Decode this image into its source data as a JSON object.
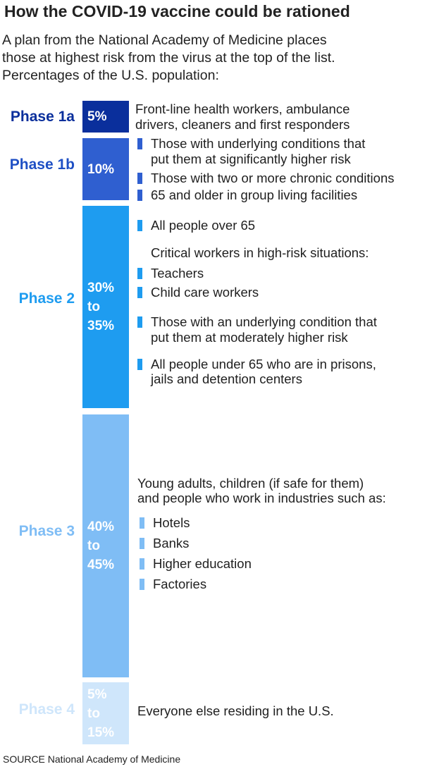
{
  "title": "How the COVID-19 vaccine could be rationed",
  "subtitle": [
    "A plan from the National Academy of Medicine places",
    "those at highest risk from the virus at the top of the list.",
    "Percentages of the U.S. population:"
  ],
  "source": "SOURCE National Academy of Medicine",
  "colors": {
    "phase1a": "#0a2f9c",
    "phase1b": "#2f5fd0",
    "phase2": "#1e9cf0",
    "phase3": "#7fbdf5",
    "phase4": "#cfe6fb"
  },
  "chart_data": {
    "type": "bar",
    "title": "How the COVID-19 vaccine could be rationed",
    "orientation": "vertical stacked",
    "categories": [
      "Phase 1a",
      "Phase 1b",
      "Phase 2",
      "Phase 3",
      "Phase 4"
    ],
    "value_labels": [
      "5%",
      "10%",
      "30%\nto\n35%",
      "40%\nto\n45%",
      "5%\nto\n15%"
    ],
    "values_low": [
      5,
      10,
      30,
      40,
      5
    ],
    "values_high": [
      5,
      10,
      35,
      45,
      15
    ],
    "descriptions": [
      {
        "lines": [
          {
            "text": "Front-line health workers, ambulance",
            "bullet": false
          },
          {
            "text": "drivers, cleaners and first responders",
            "bullet": false
          }
        ]
      },
      {
        "lines": [
          {
            "text": "Those with underlying conditions that",
            "bullet": true
          },
          {
            "text": "put them at significantly higher risk",
            "bullet": false
          },
          {
            "text": "Those with two or more chronic conditions",
            "bullet": true
          },
          {
            "text": "65 and older in group living facilities",
            "bullet": true
          }
        ]
      },
      {
        "lines": [
          {
            "text": "All people over 65",
            "bullet": true
          },
          {
            "text": "Critical workers in high-risk situations:",
            "bullet": false
          },
          {
            "text": "Teachers",
            "bullet": true
          },
          {
            "text": "Child care workers",
            "bullet": true
          },
          {
            "text": "Those with an underlying condition that",
            "bullet": true
          },
          {
            "text": "put them at moderately higher risk",
            "bullet": false
          },
          {
            "text": "All people under 65 who are in prisons,",
            "bullet": true
          },
          {
            "text": "jails and detention centers",
            "bullet": false
          }
        ]
      },
      {
        "lines": [
          {
            "text": "Young adults, children (if safe for them)",
            "bullet": false
          },
          {
            "text": "and people who work in industries such as:",
            "bullet": false
          },
          {
            "text": "Hotels",
            "bullet": true
          },
          {
            "text": "Banks",
            "bullet": true
          },
          {
            "text": "Higher education",
            "bullet": true
          },
          {
            "text": "Factories",
            "bullet": true
          }
        ]
      },
      {
        "lines": [
          {
            "text": "Everyone else residing in the U.S.",
            "bullet": false
          }
        ]
      }
    ]
  }
}
